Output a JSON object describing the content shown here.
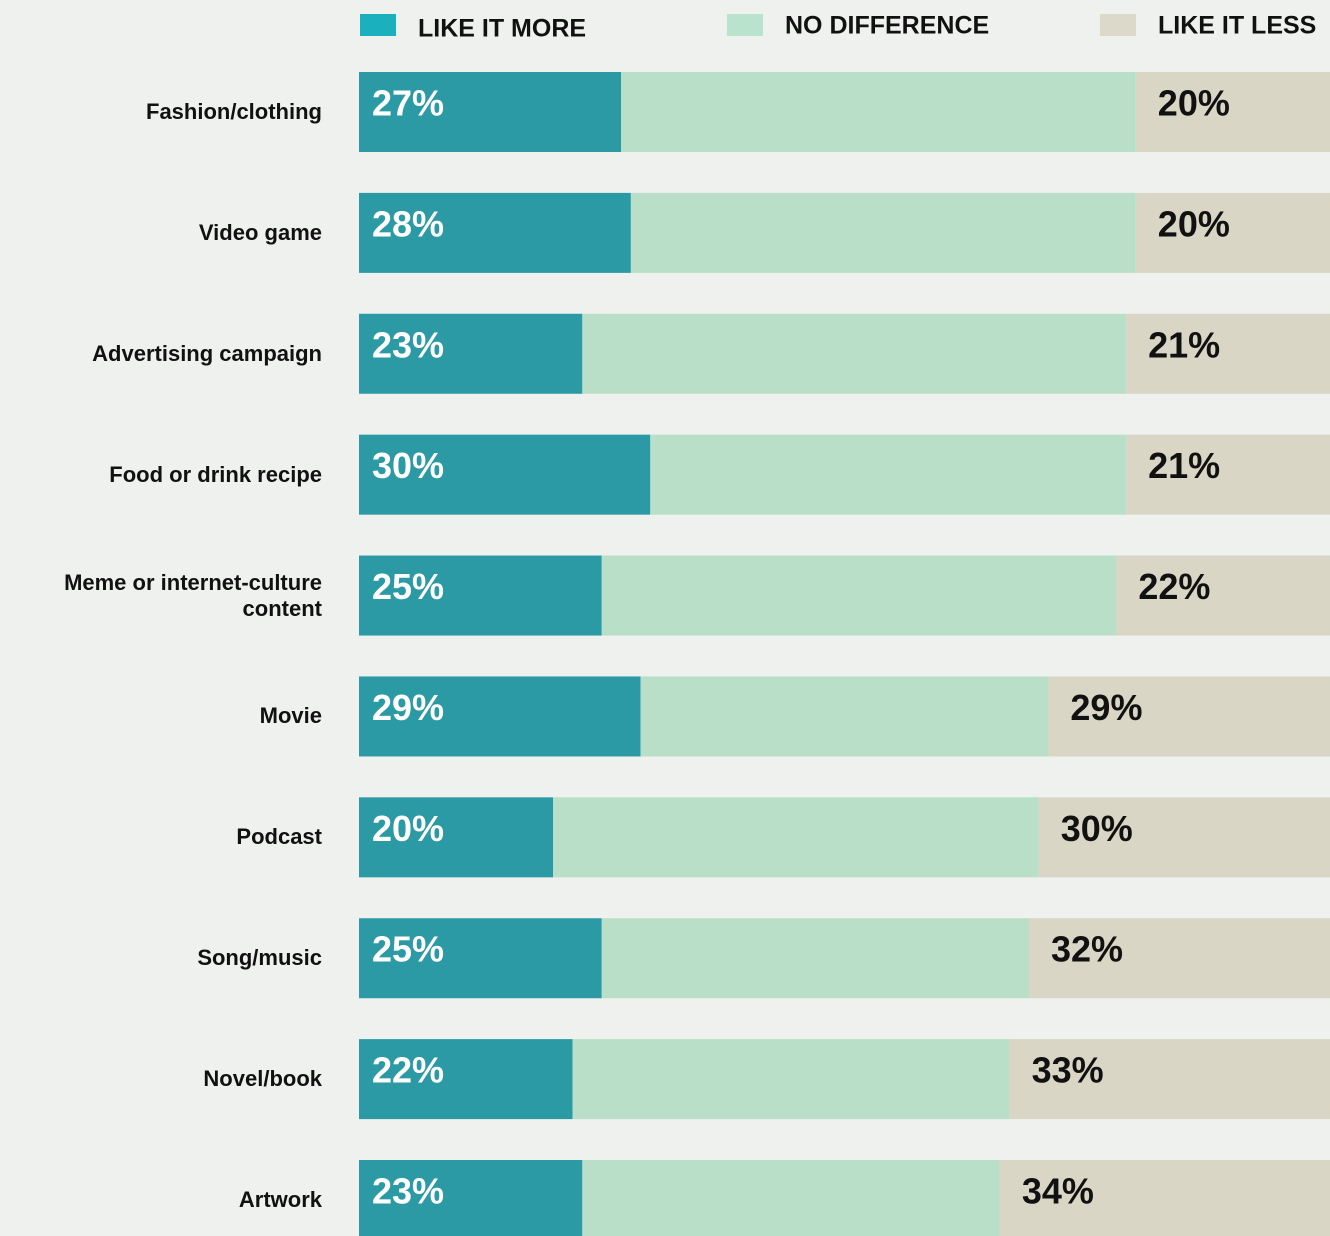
{
  "chart_data": {
    "type": "stacked-bar-horizontal",
    "categories": [
      "Fashion/clothing",
      "Video game",
      "Advertising campaign",
      "Food or drink recipe",
      "Meme or internet-culture content",
      "Movie",
      "Podcast",
      "Song/music",
      "Novel/book",
      "Artwork"
    ],
    "xlim": [
      0,
      100
    ],
    "series": [
      {
        "name": "LIKE IT MORE",
        "color": "#2b9aa4",
        "values": [
          27,
          28,
          23,
          30,
          25,
          29,
          20,
          25,
          22,
          23
        ],
        "value_labels": [
          "27%",
          "28%",
          "23%",
          "30%",
          "25%",
          "29%",
          "20%",
          "25%",
          "22%",
          "23%"
        ]
      },
      {
        "name": "NO DIFFERENCE",
        "color": "#b9dfc8",
        "values": [
          53,
          52,
          56,
          49,
          53,
          42,
          50,
          44,
          45,
          43
        ]
      },
      {
        "name": "LIKE IT LESS",
        "color": "#d9d6c5",
        "values": [
          20,
          20,
          21,
          21,
          22,
          29,
          30,
          32,
          33,
          34
        ],
        "value_labels": [
          "20%",
          "20%",
          "21%",
          "21%",
          "22%",
          "29%",
          "30%",
          "32%",
          "33%",
          "34%"
        ]
      }
    ],
    "legend_swatch_colors": [
      "#1ab0be",
      "#b9e3cc",
      "#dcd9cb"
    ]
  }
}
